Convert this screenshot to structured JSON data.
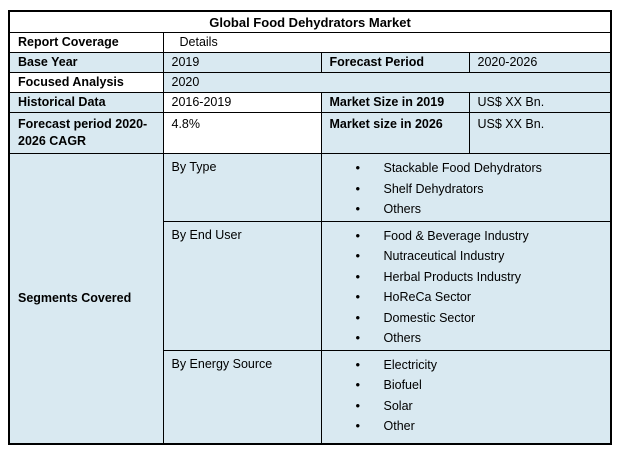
{
  "table": {
    "title": "Global Food Dehydrators Market",
    "report_coverage": {
      "label": "Report Coverage",
      "value": "Details"
    },
    "base_year": {
      "label": "Base Year",
      "value": "2019"
    },
    "forecast_period": {
      "label": "Forecast Period",
      "value": "2020-2026"
    },
    "focused_analysis": {
      "label": "Focused Analysis",
      "value": "2020"
    },
    "historical_data": {
      "label": "Historical Data",
      "value": "2016-2019"
    },
    "market_size_2019": {
      "label": "Market Size in 2019",
      "value": "US$ XX Bn."
    },
    "forecast_cagr": {
      "label": "Forecast period 2020-2026 CAGR",
      "value": "4.8%"
    },
    "market_size_2026": {
      "label": "Market size in 2026",
      "value": "US$ XX Bn."
    },
    "segments_covered": {
      "label": "Segments Covered",
      "groups": [
        {
          "name": "By Type",
          "items": [
            "Stackable Food Dehydrators",
            "Shelf Dehydrators",
            "Others"
          ]
        },
        {
          "name": "By End User",
          "items": [
            "Food & Beverage Industry",
            "Nutraceutical Industry",
            "Herbal Products Industry",
            "HoReCa Sector",
            "Domestic Sector",
            "Others"
          ]
        },
        {
          "name": "By Energy Source",
          "items": [
            "Electricity",
            "Biofuel",
            "Solar",
            "Other"
          ]
        }
      ]
    }
  },
  "colors": {
    "cell_blue": "#d9e9f1",
    "cell_white": "#ffffff",
    "border": "#000000",
    "text": "#000000"
  }
}
